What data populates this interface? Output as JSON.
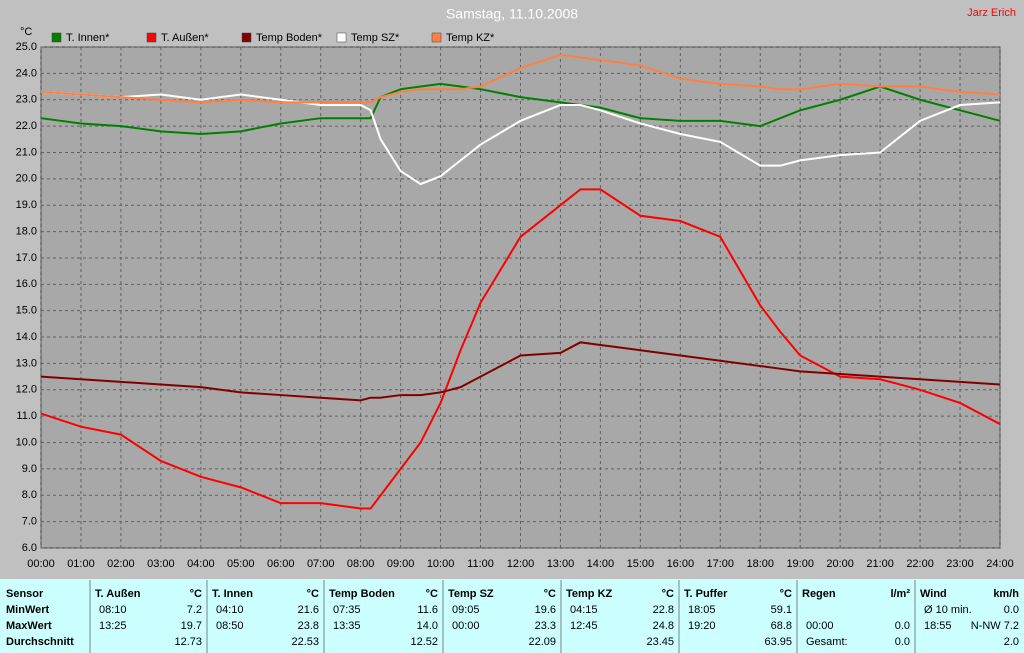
{
  "chart_data": {
    "type": "line",
    "title": "Samstag, 11.10.2008",
    "annotation": "Jarz Erich",
    "y_label": "°C",
    "x": [
      0,
      1,
      2,
      3,
      4,
      5,
      6,
      7,
      8,
      8.25,
      8.5,
      9,
      9.5,
      10,
      10.5,
      11,
      12,
      13,
      13.5,
      14,
      15,
      16,
      17,
      18,
      18.5,
      19,
      20,
      21,
      22,
      23,
      24
    ],
    "series": [
      {
        "name": "T. Innen*",
        "color": "#008000",
        "values": [
          22.3,
          22.1,
          22.0,
          21.8,
          21.7,
          21.8,
          22.1,
          22.3,
          22.3,
          22.3,
          23.1,
          23.4,
          23.5,
          23.6,
          23.5,
          23.4,
          23.1,
          22.9,
          22.8,
          22.7,
          22.3,
          22.2,
          22.2,
          22.0,
          22.3,
          22.6,
          23.0,
          23.5,
          23.0,
          22.6,
          22.2
        ]
      },
      {
        "name": "T. Außen*",
        "color": "#ff0000",
        "values": [
          11.1,
          10.6,
          10.3,
          9.3,
          8.7,
          8.3,
          7.7,
          7.7,
          7.5,
          7.5,
          8.0,
          9.0,
          10.0,
          11.5,
          13.5,
          15.3,
          17.8,
          19.0,
          19.6,
          19.6,
          18.6,
          18.4,
          17.8,
          15.2,
          14.2,
          13.3,
          12.5,
          12.4,
          12.0,
          11.5,
          10.7
        ]
      },
      {
        "name": "Temp Boden*",
        "color": "#800000",
        "values": [
          12.5,
          12.4,
          12.3,
          12.2,
          12.1,
          11.9,
          11.8,
          11.7,
          11.6,
          11.7,
          11.7,
          11.8,
          11.8,
          11.9,
          12.1,
          12.5,
          13.3,
          13.4,
          13.8,
          13.7,
          13.5,
          13.3,
          13.1,
          12.9,
          12.8,
          12.7,
          12.6,
          12.5,
          12.4,
          12.3,
          12.2
        ]
      },
      {
        "name": "Temp SZ*",
        "color": "#ffffff",
        "values": [
          23.3,
          23.2,
          23.1,
          23.2,
          23.0,
          23.2,
          23.0,
          22.8,
          22.8,
          22.6,
          21.5,
          20.3,
          19.8,
          20.1,
          20.7,
          21.3,
          22.2,
          22.8,
          22.8,
          22.6,
          22.1,
          21.7,
          21.4,
          20.5,
          20.5,
          20.7,
          20.9,
          21.0,
          22.2,
          22.8,
          22.9
        ]
      },
      {
        "name": "Temp KZ*",
        "color": "#ff8040",
        "values": [
          23.3,
          23.2,
          23.1,
          23.0,
          22.9,
          23.0,
          22.9,
          22.9,
          22.9,
          22.9,
          23.1,
          23.3,
          23.4,
          23.4,
          23.4,
          23.5,
          24.2,
          24.7,
          24.6,
          24.5,
          24.3,
          23.8,
          23.6,
          23.5,
          23.4,
          23.4,
          23.6,
          23.5,
          23.5,
          23.3,
          23.2
        ]
      }
    ],
    "xlim": [
      0,
      24
    ],
    "xticks": [
      {
        "value": 0,
        "label": "00:00"
      },
      {
        "value": 1,
        "label": "01:00"
      },
      {
        "value": 2,
        "label": "02:00"
      },
      {
        "value": 3,
        "label": "03:00"
      },
      {
        "value": 4,
        "label": "04:00"
      },
      {
        "value": 5,
        "label": "05:00"
      },
      {
        "value": 6,
        "label": "06:00"
      },
      {
        "value": 7,
        "label": "07:00"
      },
      {
        "value": 8,
        "label": "08:00"
      },
      {
        "value": 9,
        "label": "09:00"
      },
      {
        "value": 10,
        "label": "10:00"
      },
      {
        "value": 11,
        "label": "11:00"
      },
      {
        "value": 12,
        "label": "12:00"
      },
      {
        "value": 13,
        "label": "13:00"
      },
      {
        "value": 14,
        "label": "14:00"
      },
      {
        "value": 15,
        "label": "15:00"
      },
      {
        "value": 16,
        "label": "16:00"
      },
      {
        "value": 17,
        "label": "17:00"
      },
      {
        "value": 18,
        "label": "18:00"
      },
      {
        "value": 19,
        "label": "19:00"
      },
      {
        "value": 20,
        "label": "20:00"
      },
      {
        "value": 21,
        "label": "21:00"
      },
      {
        "value": 22,
        "label": "22:00"
      },
      {
        "value": 23,
        "label": "23:00"
      },
      {
        "value": 24,
        "label": "24:00"
      }
    ],
    "ylim": [
      6,
      25
    ],
    "yticks": [
      {
        "value": 6,
        "label": "6.0"
      },
      {
        "value": 7,
        "label": "7.0"
      },
      {
        "value": 8,
        "label": "8.0"
      },
      {
        "value": 9,
        "label": "9.0"
      },
      {
        "value": 10,
        "label": "10.0"
      },
      {
        "value": 11,
        "label": "11.0"
      },
      {
        "value": 12,
        "label": "12.0"
      },
      {
        "value": 13,
        "label": "13.0"
      },
      {
        "value": 14,
        "label": "14.0"
      },
      {
        "value": 15,
        "label": "15.0"
      },
      {
        "value": 16,
        "label": "16.0"
      },
      {
        "value": 17,
        "label": "17.0"
      },
      {
        "value": 18,
        "label": "18.0"
      },
      {
        "value": 19,
        "label": "19.0"
      },
      {
        "value": 20,
        "label": "20.0"
      },
      {
        "value": 21,
        "label": "21.0"
      },
      {
        "value": 22,
        "label": "22.0"
      },
      {
        "value": 23,
        "label": "23.0"
      },
      {
        "value": 24,
        "label": "24.0"
      },
      {
        "value": 25,
        "label": "25.0"
      }
    ],
    "grid": true
  },
  "table": {
    "row_labels": [
      "Sensor",
      "MinWert",
      "MaxWert",
      "Durchschnitt"
    ],
    "columns": [
      {
        "name": "T. Außen",
        "unit": "°C",
        "rows": [
          [
            "08:10",
            "7.2"
          ],
          [
            "13:25",
            "19.7"
          ],
          [
            null,
            "12.73"
          ]
        ]
      },
      {
        "name": "T. Innen",
        "unit": "°C",
        "rows": [
          [
            "04:10",
            "21.6"
          ],
          [
            "08:50",
            "23.8"
          ],
          [
            null,
            "22.53"
          ]
        ]
      },
      {
        "name": "Temp Boden",
        "unit": "°C",
        "rows": [
          [
            "07:35",
            "11.6"
          ],
          [
            "13:35",
            "14.0"
          ],
          [
            null,
            "12.52"
          ]
        ]
      },
      {
        "name": "Temp SZ",
        "unit": "°C",
        "rows": [
          [
            "09:05",
            "19.6"
          ],
          [
            "00:00",
            "23.3"
          ],
          [
            null,
            "22.09"
          ]
        ]
      },
      {
        "name": "Temp KZ",
        "unit": "°C",
        "rows": [
          [
            "04:15",
            "22.8"
          ],
          [
            "12:45",
            "24.8"
          ],
          [
            null,
            "23.45"
          ]
        ]
      },
      {
        "name": "T. Puffer",
        "unit": "°C",
        "rows": [
          [
            "18:05",
            "59.1"
          ],
          [
            "19:20",
            "68.8"
          ],
          [
            null,
            "63.95"
          ]
        ]
      },
      {
        "name": "Regen",
        "unit": "l/m²",
        "rows": [
          [
            null,
            null
          ],
          [
            "00:00",
            "0.0"
          ],
          [
            "Gesamt:",
            "0.0"
          ]
        ]
      },
      {
        "name": "Wind",
        "unit": "km/h",
        "rows": [
          [
            "Ø 10 min.",
            "0.0"
          ],
          [
            "18:55",
            "N-NW 7.2"
          ],
          [
            null,
            "2.0"
          ]
        ]
      }
    ]
  }
}
